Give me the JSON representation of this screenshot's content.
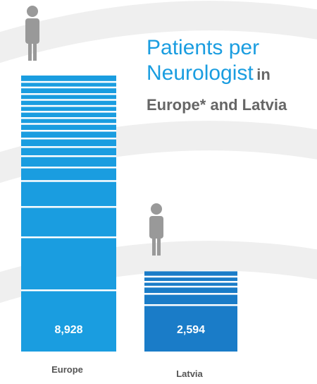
{
  "chart_data": {
    "type": "bar",
    "title": "Patients per Neurologist",
    "subtitle": "in Europe* and Latvia",
    "categories": [
      "Europe",
      "Latvia"
    ],
    "values": [
      8928,
      2594
    ],
    "value_labels": [
      "8,928",
      "2,594"
    ],
    "colors": [
      "#1a9de0",
      "#1a7cc8"
    ]
  }
}
